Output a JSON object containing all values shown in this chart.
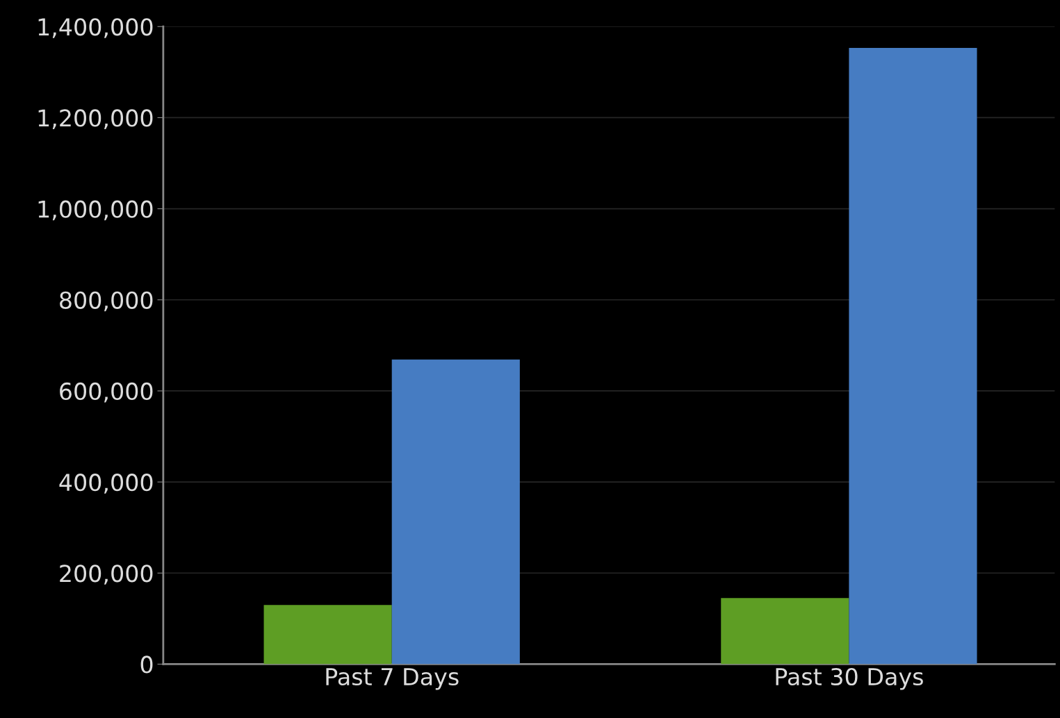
{
  "chart_data": {
    "type": "bar",
    "categories": [
      "Past 7 Days",
      "Past 30 Days"
    ],
    "series": [
      {
        "color": "#5e9e24",
        "values": [
          130000,
          145000
        ]
      },
      {
        "color": "#467cc2",
        "values": [
          669000,
          1353000
        ]
      }
    ],
    "ylim": [
      0,
      1400000
    ],
    "yticks": [
      {
        "value": 0,
        "label": "0"
      },
      {
        "value": 200000,
        "label": "200,000"
      },
      {
        "value": 400000,
        "label": "400,000"
      },
      {
        "value": 600000,
        "label": "600,000"
      },
      {
        "value": 800000,
        "label": "800,000"
      },
      {
        "value": 1000000,
        "label": "1,000,000"
      },
      {
        "value": 1200000,
        "label": "1,200,000"
      },
      {
        "value": 1400000,
        "label": "1,400,000"
      }
    ],
    "grid": "y",
    "legend": false
  }
}
